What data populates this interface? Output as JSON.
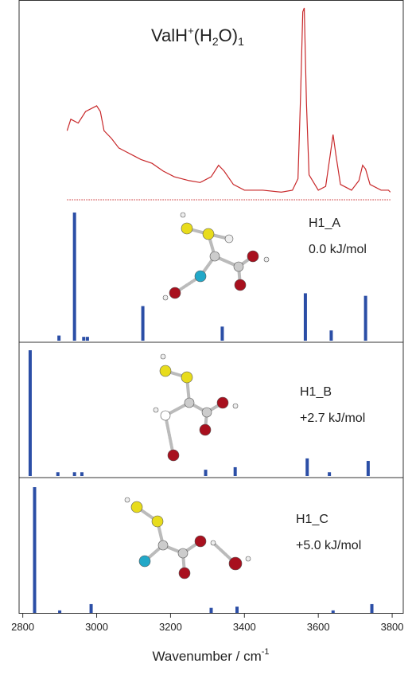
{
  "chart_data": [
    {
      "type": "line",
      "title": [
        "ValH",
        "+",
        "(H",
        "2",
        "O)",
        "1"
      ],
      "color": "#c8282a",
      "x": [
        2920,
        2930,
        2950,
        2970,
        2990,
        3000,
        3010,
        3020,
        3040,
        3060,
        3080,
        3100,
        3120,
        3150,
        3180,
        3210,
        3250,
        3280,
        3310,
        3330,
        3345,
        3370,
        3400,
        3450,
        3500,
        3530,
        3545,
        3552,
        3558,
        3562,
        3568,
        3575,
        3600,
        3620,
        3632,
        3640,
        3648,
        3660,
        3690,
        3710,
        3720,
        3728,
        3740,
        3770,
        3790,
        3795
      ],
      "values": [
        0.36,
        0.42,
        0.4,
        0.46,
        0.48,
        0.49,
        0.46,
        0.36,
        0.32,
        0.27,
        0.25,
        0.23,
        0.21,
        0.19,
        0.15,
        0.12,
        0.1,
        0.09,
        0.12,
        0.18,
        0.15,
        0.08,
        0.05,
        0.05,
        0.04,
        0.05,
        0.11,
        0.54,
        0.98,
        1.0,
        0.5,
        0.13,
        0.05,
        0.07,
        0.23,
        0.34,
        0.23,
        0.08,
        0.05,
        0.1,
        0.18,
        0.16,
        0.08,
        0.05,
        0.05,
        0.04
      ],
      "xlim": [
        2790,
        3830
      ],
      "ylim": [
        0,
        1
      ]
    },
    {
      "type": "stick",
      "color": "#2b4ea6",
      "annotations": [
        "H1_A",
        "0.0 kJ/mol"
      ],
      "x": [
        2898,
        2940,
        2965,
        2975,
        3125,
        3340,
        3565,
        3635,
        3728
      ],
      "values": [
        0.04,
        1.0,
        0.03,
        0.03,
        0.27,
        0.11,
        0.37,
        0.08,
        0.35
      ],
      "xlim": [
        2790,
        3830
      ],
      "ylim": [
        0,
        1
      ]
    },
    {
      "type": "stick",
      "color": "#2b4ea6",
      "annotations": [
        "H1_B",
        "+2.7 kJ/mol"
      ],
      "x": [
        2820,
        2895,
        2940,
        2960,
        3295,
        3375,
        3570,
        3630,
        3735
      ],
      "values": [
        1.0,
        0.03,
        0.03,
        0.03,
        0.05,
        0.07,
        0.14,
        0.03,
        0.12
      ],
      "xlim": [
        2790,
        3830
      ],
      "ylim": [
        0,
        1
      ]
    },
    {
      "type": "stick",
      "color": "#2b4ea6",
      "annotations": [
        "H1_C",
        "+5.0 kJ/mol"
      ],
      "x": [
        2832,
        2900,
        2985,
        3310,
        3380,
        3640,
        3745
      ],
      "values": [
        1.0,
        0.02,
        0.07,
        0.04,
        0.05,
        0.02,
        0.07
      ],
      "xlim": [
        2790,
        3830
      ],
      "ylim": [
        0,
        1
      ],
      "xticks": [
        2800,
        3000,
        3200,
        3400,
        3600,
        3800
      ],
      "xlabel": [
        "Wavenumber / cm",
        "-1"
      ]
    }
  ]
}
